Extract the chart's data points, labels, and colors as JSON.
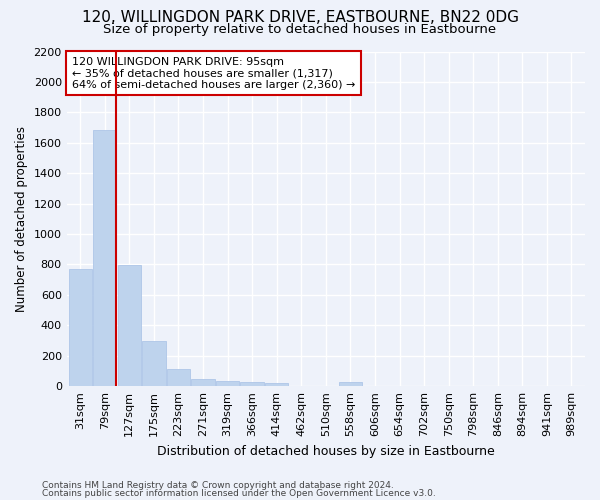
{
  "title": "120, WILLINGDON PARK DRIVE, EASTBOURNE, BN22 0DG",
  "subtitle": "Size of property relative to detached houses in Eastbourne",
  "xlabel": "Distribution of detached houses by size in Eastbourne",
  "ylabel": "Number of detached properties",
  "categories": [
    "31sqm",
    "79sqm",
    "127sqm",
    "175sqm",
    "223sqm",
    "271sqm",
    "319sqm",
    "366sqm",
    "414sqm",
    "462sqm",
    "510sqm",
    "558sqm",
    "606sqm",
    "654sqm",
    "702sqm",
    "750sqm",
    "798sqm",
    "846sqm",
    "894sqm",
    "941sqm",
    "989sqm"
  ],
  "values": [
    770,
    1685,
    795,
    300,
    115,
    45,
    35,
    28,
    22,
    0,
    0,
    25,
    0,
    0,
    0,
    0,
    0,
    0,
    0,
    0,
    0
  ],
  "bar_color": "#bed3ed",
  "bar_edge_color": "#aec6e8",
  "property_line_color": "#cc0000",
  "annotation_text": "120 WILLINGDON PARK DRIVE: 95sqm\n← 35% of detached houses are smaller (1,317)\n64% of semi-detached houses are larger (2,360) →",
  "annotation_box_facecolor": "#ffffff",
  "annotation_box_edgecolor": "#cc0000",
  "ylim": [
    0,
    2200
  ],
  "yticks": [
    0,
    200,
    400,
    600,
    800,
    1000,
    1200,
    1400,
    1600,
    1800,
    2000,
    2200
  ],
  "background_color": "#eef2fa",
  "grid_color": "#ffffff",
  "footer_line1": "Contains HM Land Registry data © Crown copyright and database right 2024.",
  "footer_line2": "Contains public sector information licensed under the Open Government Licence v3.0.",
  "title_fontsize": 11,
  "subtitle_fontsize": 9.5,
  "xlabel_fontsize": 9,
  "ylabel_fontsize": 8.5,
  "tick_fontsize": 8,
  "footer_fontsize": 6.5
}
